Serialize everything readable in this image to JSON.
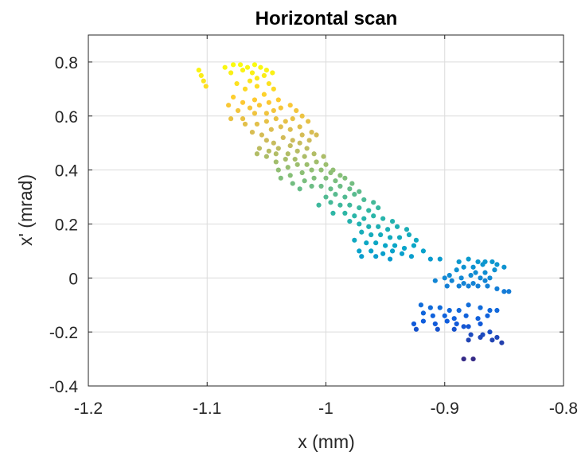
{
  "chart_data": {
    "type": "scatter",
    "title": "Horizontal scan",
    "xlabel": "x (mm)",
    "ylabel": "x' (mrad)",
    "xlim": [
      -1.2,
      -0.8
    ],
    "ylim": [
      -0.4,
      0.9
    ],
    "x_ticks": [
      -1.2,
      -1.1,
      -1.0,
      -0.9,
      -0.8
    ],
    "x_tick_labels": [
      "-1.2",
      "-1.1",
      "-1",
      "-0.9",
      "-0.8"
    ],
    "y_ticks": [
      -0.4,
      -0.2,
      0.0,
      0.2,
      0.4,
      0.6,
      0.8
    ],
    "y_tick_labels": [
      "-0.4",
      "-0.2",
      "0",
      "0.2",
      "0.4",
      "0.6",
      "0.8"
    ],
    "grid": true,
    "colormap": "parula",
    "colormap_stops": [
      "#352a87",
      "#0f5cdd",
      "#1481d6",
      "#06a4ca",
      "#2eb7a4",
      "#87bf77",
      "#d1bb59",
      "#fec832",
      "#f9fb0e"
    ],
    "series": [
      {
        "points": [
          [
            -1.107,
            0.77
          ],
          [
            -1.105,
            0.75
          ],
          [
            -1.103,
            0.73
          ],
          [
            -1.101,
            0.71
          ],
          [
            -1.085,
            0.78
          ],
          [
            -1.078,
            0.79
          ],
          [
            -1.072,
            0.79
          ],
          [
            -1.066,
            0.78
          ],
          [
            -1.06,
            0.79
          ],
          [
            -1.055,
            0.78
          ],
          [
            -1.05,
            0.77
          ],
          [
            -1.062,
            0.76
          ],
          [
            -1.07,
            0.77
          ],
          [
            -1.08,
            0.76
          ],
          [
            -1.058,
            0.74
          ],
          [
            -1.064,
            0.73
          ],
          [
            -1.052,
            0.75
          ],
          [
            -1.045,
            0.76
          ],
          [
            -1.075,
            0.72
          ],
          [
            -1.068,
            0.7
          ],
          [
            -1.058,
            0.71
          ],
          [
            -1.048,
            0.72
          ],
          [
            -1.078,
            0.67
          ],
          [
            -1.07,
            0.65
          ],
          [
            -1.06,
            0.66
          ],
          [
            -1.052,
            0.68
          ],
          [
            -1.044,
            0.7
          ],
          [
            -1.082,
            0.64
          ],
          [
            -1.074,
            0.62
          ],
          [
            -1.064,
            0.63
          ],
          [
            -1.056,
            0.64
          ],
          [
            -1.048,
            0.65
          ],
          [
            -1.04,
            0.66
          ],
          [
            -1.08,
            0.59
          ],
          [
            -1.07,
            0.59
          ],
          [
            -1.06,
            0.61
          ],
          [
            -1.05,
            0.61
          ],
          [
            -1.044,
            0.62
          ],
          [
            -1.038,
            0.63
          ],
          [
            -1.03,
            0.64
          ],
          [
            -1.025,
            0.62
          ],
          [
            -1.068,
            0.57
          ],
          [
            -1.058,
            0.57
          ],
          [
            -1.05,
            0.58
          ],
          [
            -1.042,
            0.59
          ],
          [
            -1.034,
            0.58
          ],
          [
            -1.028,
            0.59
          ],
          [
            -1.02,
            0.6
          ],
          [
            -1.062,
            0.54
          ],
          [
            -1.054,
            0.53
          ],
          [
            -1.046,
            0.55
          ],
          [
            -1.038,
            0.56
          ],
          [
            -1.03,
            0.55
          ],
          [
            -1.022,
            0.56
          ],
          [
            -1.015,
            0.58
          ],
          [
            -1.05,
            0.51
          ],
          [
            -1.044,
            0.5
          ],
          [
            -1.036,
            0.52
          ],
          [
            -1.028,
            0.51
          ],
          [
            -1.02,
            0.53
          ],
          [
            -1.012,
            0.54
          ],
          [
            -1.056,
            0.48
          ],
          [
            -1.048,
            0.47
          ],
          [
            -1.04,
            0.48
          ],
          [
            -1.03,
            0.49
          ],
          [
            -1.022,
            0.5
          ],
          [
            -1.014,
            0.51
          ],
          [
            -1.008,
            0.53
          ],
          [
            -1.058,
            0.46
          ],
          [
            -1.05,
            0.45
          ],
          [
            -1.042,
            0.46
          ],
          [
            -1.032,
            0.46
          ],
          [
            -1.024,
            0.47
          ],
          [
            -1.016,
            0.48
          ],
          [
            -1.042,
            0.43
          ],
          [
            -1.034,
            0.44
          ],
          [
            -1.026,
            0.44
          ],
          [
            -1.018,
            0.45
          ],
          [
            -1.01,
            0.46
          ],
          [
            -1.002,
            0.45
          ],
          [
            -1.04,
            0.4
          ],
          [
            -1.032,
            0.41
          ],
          [
            -1.024,
            0.42
          ],
          [
            -1.016,
            0.42
          ],
          [
            -1.008,
            0.43
          ],
          [
            -1.0,
            0.42
          ],
          [
            -0.994,
            0.4
          ],
          [
            -1.038,
            0.37
          ],
          [
            -1.03,
            0.38
          ],
          [
            -1.02,
            0.39
          ],
          [
            -1.012,
            0.4
          ],
          [
            -1.004,
            0.4
          ],
          [
            -0.996,
            0.39
          ],
          [
            -0.988,
            0.38
          ],
          [
            -1.028,
            0.35
          ],
          [
            -1.018,
            0.36
          ],
          [
            -1.01,
            0.37
          ],
          [
            -1.0,
            0.37
          ],
          [
            -0.992,
            0.36
          ],
          [
            -0.984,
            0.37
          ],
          [
            -0.978,
            0.35
          ],
          [
            -1.022,
            0.33
          ],
          [
            -1.012,
            0.34
          ],
          [
            -1.004,
            0.34
          ],
          [
            -0.996,
            0.33
          ],
          [
            -0.988,
            0.34
          ],
          [
            -0.98,
            0.33
          ],
          [
            -0.972,
            0.32
          ],
          [
            -1.0,
            0.3
          ],
          [
            -0.992,
            0.31
          ],
          [
            -0.984,
            0.3
          ],
          [
            -0.976,
            0.31
          ],
          [
            -0.968,
            0.29
          ],
          [
            -0.96,
            0.28
          ],
          [
            -1.006,
            0.27
          ],
          [
            -0.996,
            0.28
          ],
          [
            -0.988,
            0.27
          ],
          [
            -0.98,
            0.27
          ],
          [
            -0.972,
            0.26
          ],
          [
            -0.964,
            0.25
          ],
          [
            -0.956,
            0.26
          ],
          [
            -0.994,
            0.24
          ],
          [
            -0.984,
            0.24
          ],
          [
            -0.976,
            0.23
          ],
          [
            -0.968,
            0.22
          ],
          [
            -0.96,
            0.23
          ],
          [
            -0.952,
            0.22
          ],
          [
            -0.944,
            0.21
          ],
          [
            -0.98,
            0.21
          ],
          [
            -0.972,
            0.2
          ],
          [
            -0.964,
            0.19
          ],
          [
            -0.956,
            0.19
          ],
          [
            -0.948,
            0.18
          ],
          [
            -0.94,
            0.19
          ],
          [
            -0.932,
            0.18
          ],
          [
            -0.97,
            0.17
          ],
          [
            -0.962,
            0.16
          ],
          [
            -0.954,
            0.16
          ],
          [
            -0.946,
            0.15
          ],
          [
            -0.938,
            0.15
          ],
          [
            -0.93,
            0.16
          ],
          [
            -0.924,
            0.14
          ],
          [
            -0.976,
            0.14
          ],
          [
            -0.966,
            0.13
          ],
          [
            -0.958,
            0.13
          ],
          [
            -0.95,
            0.12
          ],
          [
            -0.942,
            0.12
          ],
          [
            -0.934,
            0.11
          ],
          [
            -0.926,
            0.12
          ],
          [
            -0.918,
            0.1
          ],
          [
            -0.972,
            0.1
          ],
          [
            -0.962,
            0.1
          ],
          [
            -0.952,
            0.09
          ],
          [
            -0.944,
            0.1
          ],
          [
            -0.936,
            0.09
          ],
          [
            -0.928,
            0.08
          ],
          [
            -0.97,
            0.08
          ],
          [
            -0.958,
            0.08
          ],
          [
            -0.946,
            0.07
          ],
          [
            -0.912,
            0.07
          ],
          [
            -0.904,
            0.07
          ],
          [
            -0.888,
            0.06
          ],
          [
            -0.88,
            0.07
          ],
          [
            -0.872,
            0.06
          ],
          [
            -0.866,
            0.06
          ],
          [
            -0.86,
            0.06
          ],
          [
            -0.856,
            0.05
          ],
          [
            -0.85,
            0.04
          ],
          [
            -0.884,
            0.04
          ],
          [
            -0.876,
            0.04
          ],
          [
            -0.868,
            0.05
          ],
          [
            -0.89,
            0.03
          ],
          [
            -0.874,
            0.02
          ],
          [
            -0.866,
            0.02
          ],
          [
            -0.858,
            0.03
          ],
          [
            -0.896,
            0.01
          ],
          [
            -0.886,
            0.0
          ],
          [
            -0.878,
            0.01
          ],
          [
            -0.87,
            0.0
          ],
          [
            -0.862,
            0.0
          ],
          [
            -0.908,
            -0.01
          ],
          [
            -0.9,
            0.0
          ],
          [
            -0.894,
            -0.01
          ],
          [
            -0.884,
            -0.02
          ],
          [
            -0.876,
            -0.02
          ],
          [
            -0.866,
            -0.01
          ],
          [
            -0.898,
            -0.03
          ],
          [
            -0.888,
            -0.03
          ],
          [
            -0.88,
            -0.03
          ],
          [
            -0.872,
            -0.03
          ],
          [
            -0.864,
            -0.03
          ],
          [
            -0.856,
            -0.04
          ],
          [
            -0.85,
            -0.05
          ],
          [
            -0.846,
            -0.05
          ],
          [
            -0.92,
            -0.1
          ],
          [
            -0.912,
            -0.11
          ],
          [
            -0.904,
            -0.11
          ],
          [
            -0.896,
            -0.12
          ],
          [
            -0.888,
            -0.12
          ],
          [
            -0.88,
            -0.1
          ],
          [
            -0.87,
            -0.11
          ],
          [
            -0.862,
            -0.12
          ],
          [
            -0.856,
            -0.12
          ],
          [
            -0.918,
            -0.13
          ],
          [
            -0.91,
            -0.14
          ],
          [
            -0.9,
            -0.14
          ],
          [
            -0.892,
            -0.15
          ],
          [
            -0.882,
            -0.14
          ],
          [
            -0.872,
            -0.15
          ],
          [
            -0.864,
            -0.14
          ],
          [
            -0.926,
            -0.17
          ],
          [
            -0.918,
            -0.16
          ],
          [
            -0.908,
            -0.17
          ],
          [
            -0.898,
            -0.16
          ],
          [
            -0.89,
            -0.17
          ],
          [
            -0.88,
            -0.18
          ],
          [
            -0.87,
            -0.17
          ],
          [
            -0.924,
            -0.19
          ],
          [
            -0.906,
            -0.19
          ],
          [
            -0.892,
            -0.19
          ],
          [
            -0.884,
            -0.18
          ],
          [
            -0.878,
            -0.21
          ],
          [
            -0.868,
            -0.21
          ],
          [
            -0.862,
            -0.2
          ],
          [
            -0.856,
            -0.22
          ],
          [
            -0.852,
            -0.24
          ],
          [
            -0.86,
            -0.23
          ],
          [
            -0.87,
            -0.22
          ],
          [
            -0.88,
            -0.23
          ],
          [
            -0.876,
            -0.3
          ],
          [
            -0.884,
            -0.3
          ]
        ]
      }
    ]
  }
}
